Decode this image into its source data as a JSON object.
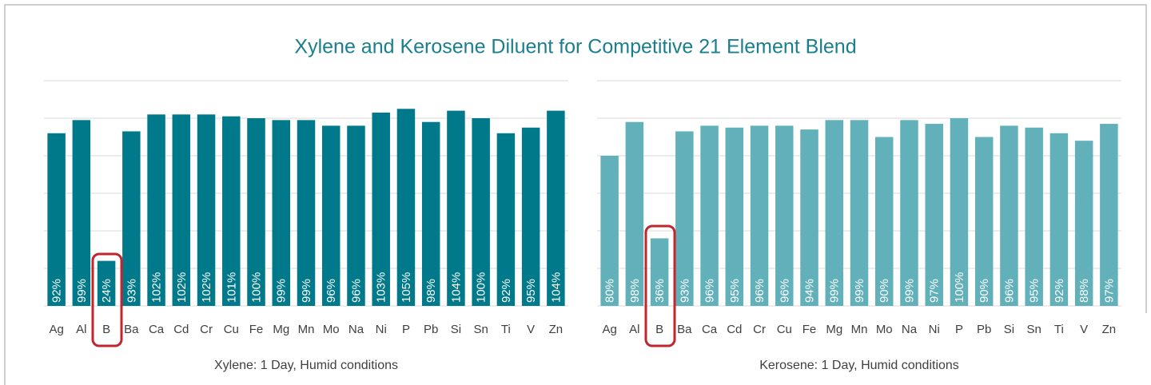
{
  "title": "Xylene and Kerosene Diluent for Competitive 21 Element Blend",
  "chart_data": [
    {
      "type": "bar",
      "x_label": "Xylene: 1 Day, Humid conditions",
      "color": "#00798a",
      "categories": [
        "Ag",
        "Al",
        "B",
        "Ba",
        "Ca",
        "Cd",
        "Cr",
        "Cu",
        "Fe",
        "Mg",
        "Mn",
        "Mo",
        "Na",
        "Ni",
        "P",
        "Pb",
        "Si",
        "Sn",
        "Ti",
        "V",
        "Zn"
      ],
      "values": [
        92,
        99,
        24,
        93,
        102,
        102,
        102,
        101,
        100,
        99,
        99,
        96,
        96,
        103,
        105,
        98,
        104,
        100,
        92,
        95,
        104
      ],
      "value_labels": [
        "92%",
        "99%",
        "24%",
        "93%",
        "102%",
        "102%",
        "102%",
        "101%",
        "100%",
        "99%",
        "99%",
        "96%",
        "96%",
        "103%",
        "105%",
        "98%",
        "104%",
        "100%",
        "92%",
        "95%",
        "104%"
      ],
      "ylim": [
        0,
        120
      ],
      "yticks": [
        0,
        20,
        40,
        60,
        80,
        100,
        120
      ],
      "grid": true
    },
    {
      "type": "bar",
      "x_label": "Kerosene: 1 Day, Humid conditions",
      "color": "#62b1ba",
      "categories": [
        "Ag",
        "Al",
        "B",
        "Ba",
        "Ca",
        "Cd",
        "Cr",
        "Cu",
        "Fe",
        "Mg",
        "Mn",
        "Mo",
        "Na",
        "Ni",
        "P",
        "Pb",
        "Si",
        "Sn",
        "Ti",
        "V",
        "Zn"
      ],
      "values": [
        80,
        98,
        36,
        93,
        96,
        95,
        96,
        96,
        94,
        99,
        99,
        90,
        99,
        97,
        100,
        90,
        96,
        95,
        92,
        88,
        97
      ],
      "value_labels": [
        "80%",
        "98%",
        "36%",
        "93%",
        "96%",
        "95%",
        "96%",
        "96%",
        "94%",
        "99%",
        "99%",
        "90%",
        "99%",
        "97%",
        "100%",
        "90%",
        "96%",
        "95%",
        "92%",
        "88%",
        "97%"
      ],
      "ylim": [
        0,
        120
      ],
      "yticks": [
        0,
        20,
        40,
        60,
        80,
        100,
        120
      ],
      "grid": true
    }
  ]
}
